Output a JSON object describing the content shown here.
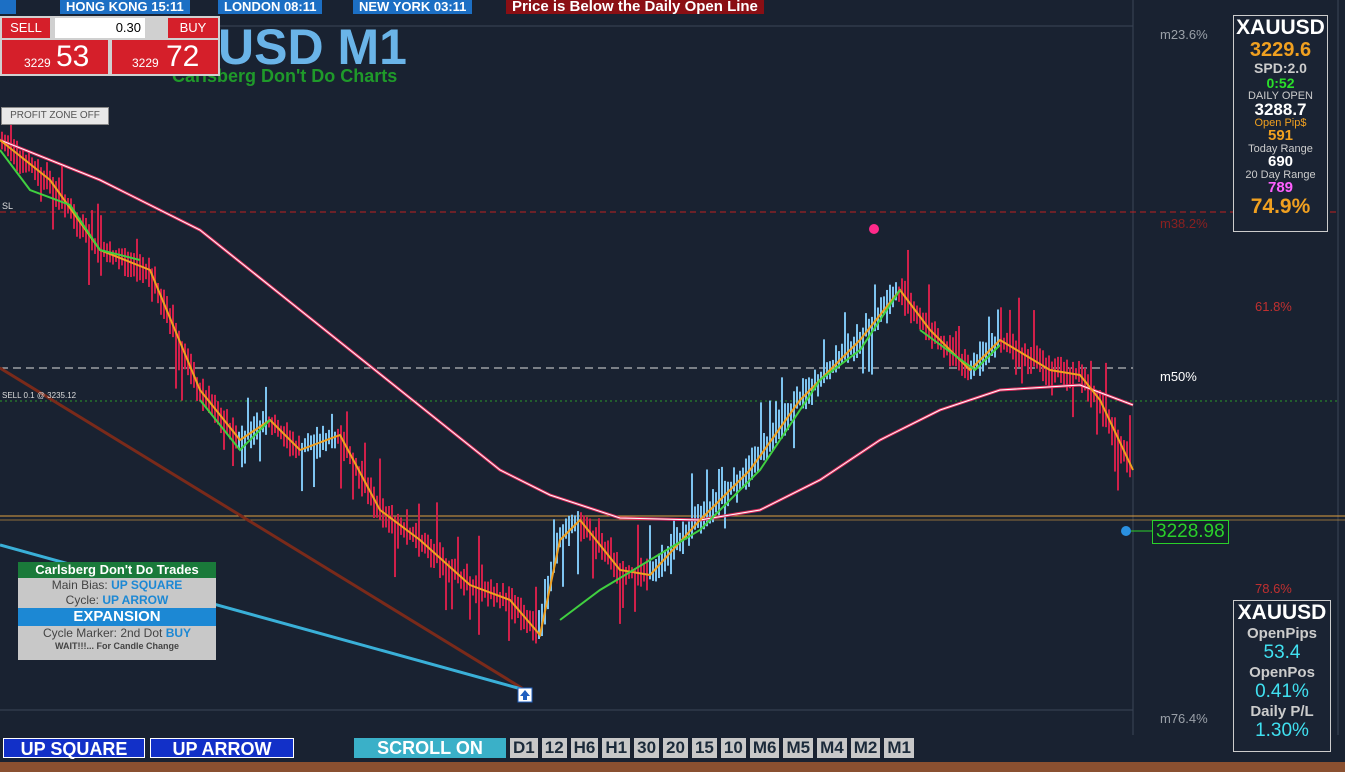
{
  "top_bar": {
    "sessions": [
      "HONG KONG 15:11",
      "LONDON 08:11",
      "NEW YORK 03:11"
    ],
    "alert": "Price is Below the Daily Open Line"
  },
  "trade_panel": {
    "sell": "SELL",
    "lot": "0.30",
    "buy": "BUY",
    "bid_big": "3229",
    "bid_small": "53",
    "ask_big": "3229",
    "ask_small": "72"
  },
  "header": {
    "title": "USD M1",
    "subtitle": "Carlsberg Don't Do Charts"
  },
  "profit_zone": "PROFIT ZONE OFF",
  "chart_labels": {
    "sl": "SL",
    "order": "SELL 0.1 @ 3235.12",
    "price": "3228.98",
    "fib": [
      "m23.6%",
      "m38.2%",
      "61.8%",
      "m50%",
      "78.6%",
      "m76.4%"
    ]
  },
  "info_panel": [
    "XAUUSD",
    "3229.6",
    "SPD:2.0",
    "0:52",
    "DAILY OPEN",
    "3288.7",
    "Open Pip$",
    "591",
    "Today Range",
    "690",
    "20 Day Range",
    "789",
    "74.9%"
  ],
  "pl_panel": [
    "XAUUSD",
    "OpenPips",
    "53.4",
    "OpenPos",
    "0.41%",
    "Daily P/L",
    "1.30%"
  ],
  "signal_panel": {
    "title": "Carlsberg Don't Do Trades",
    "bias_label": "Main Bias:",
    "bias": "UP SQUARE",
    "cycle_label": "Cycle:",
    "cycle": "UP ARROW",
    "state": "EXPANSION",
    "marker_label": "Cycle Marker: 2nd Dot",
    "marker": "BUY",
    "wait": "WAIT!!!... For Candle Change"
  },
  "bottom_bar": {
    "bias": "UP SQUARE",
    "cycle": "UP ARROW",
    "scroll": "SCROLL ON",
    "timeframes": [
      "D1",
      "12",
      "H6",
      "H1",
      "30",
      "20",
      "15",
      "10",
      "M6",
      "M5",
      "M4",
      "M2",
      "M1"
    ]
  }
}
